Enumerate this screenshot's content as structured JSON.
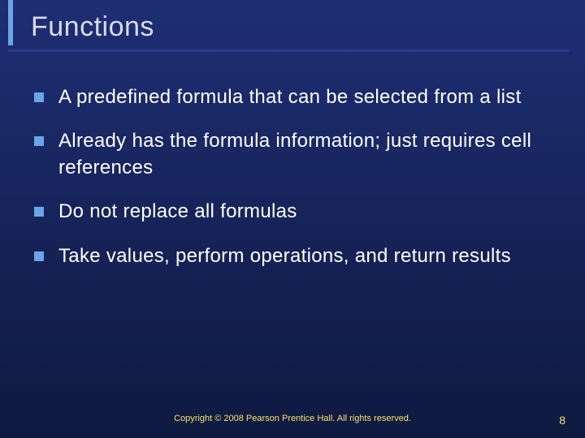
{
  "background_gradient_top": "#1e2e74",
  "background_gradient_bottom": "#0f1940",
  "title_accent_color": "#6aa5e6",
  "title_underline_color": "#2b3d8f",
  "title_text_color": "#d9dce8",
  "bullet_marker_color": "#6aa5e6",
  "bullet_text_color": "#ffffff",
  "footer_text_color": "#f2e26b",
  "page_num_color": "#f2e26b",
  "title": "Functions",
  "title_fontsize": 34,
  "bullet_fontsize": 24,
  "bullets": [
    "A predefined formula that can be selected from a list",
    "Already has the formula information; just requires cell references",
    "Do not replace all formulas",
    "Take values, perform operations, and return results"
  ],
  "footer": "Copyright © 2008 Pearson Prentice Hall. All rights reserved.",
  "page_number": "8"
}
